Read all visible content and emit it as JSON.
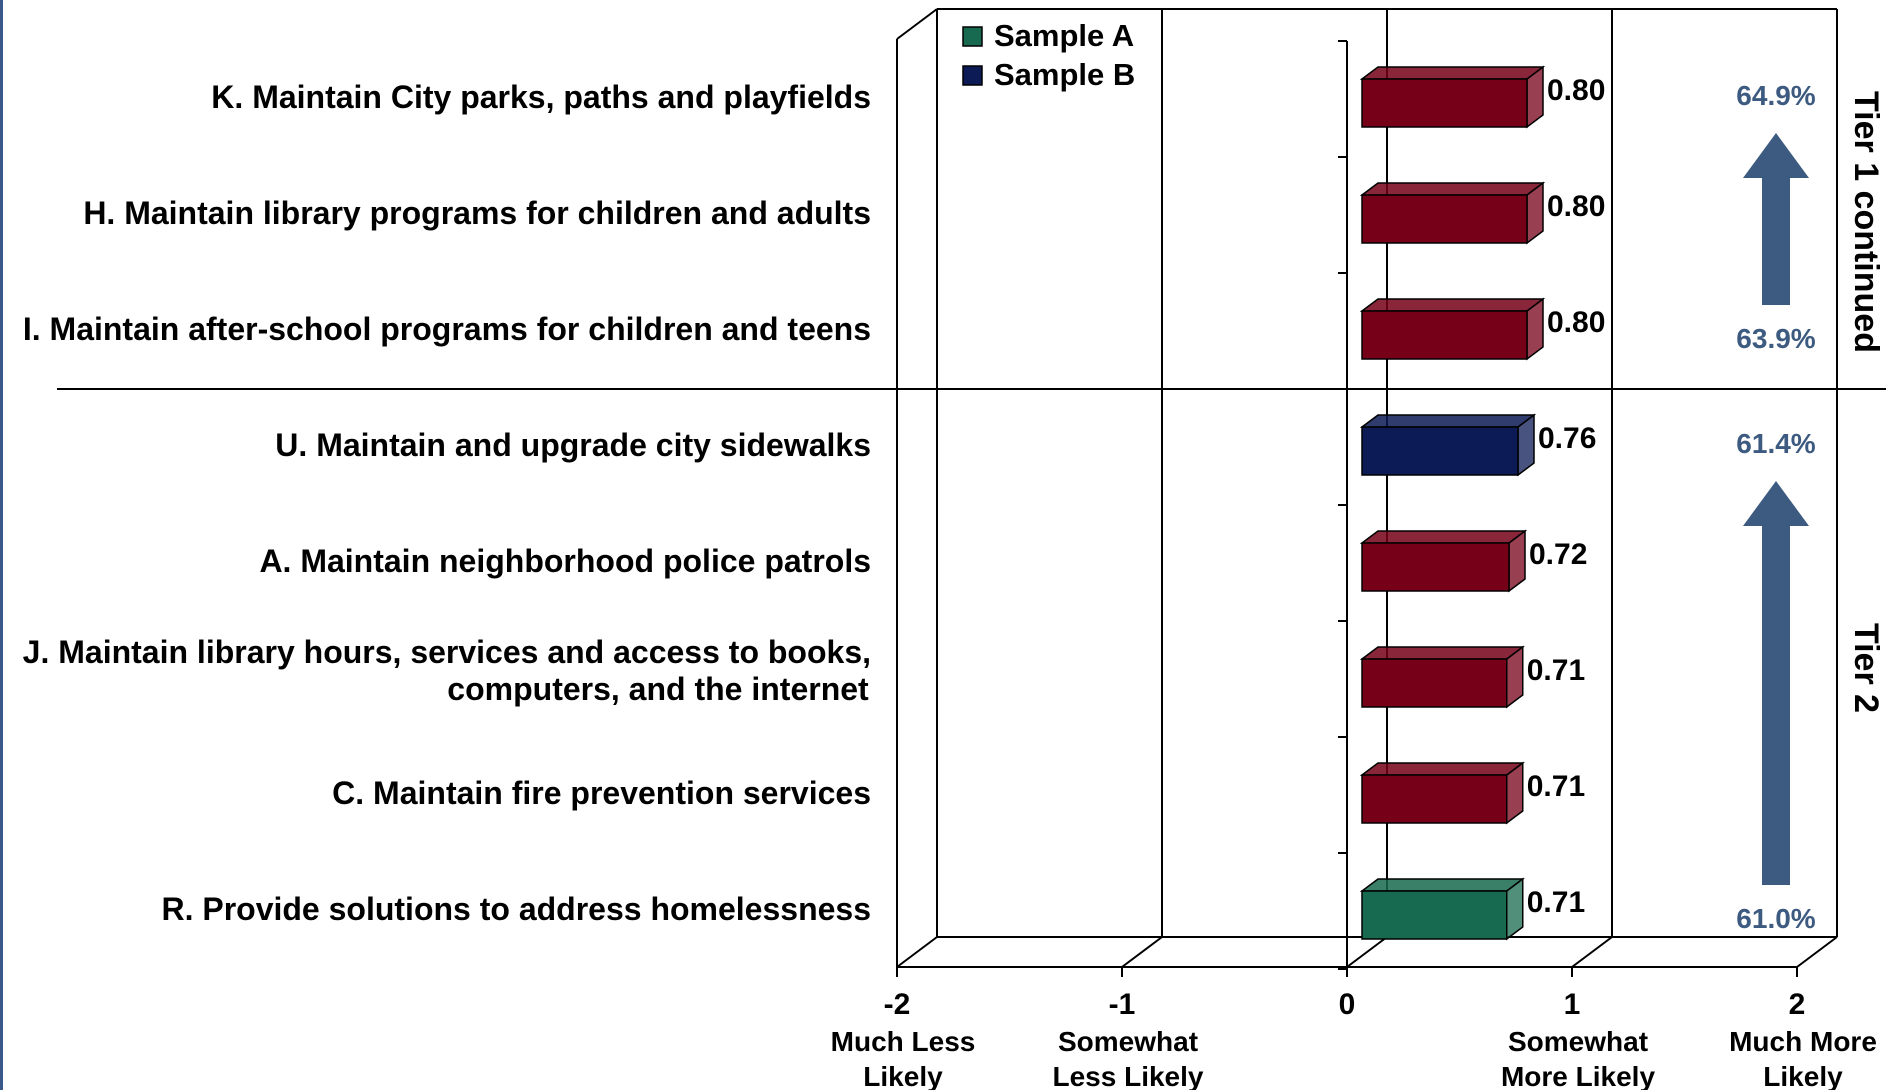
{
  "chart_data": {
    "type": "bar",
    "orientation": "horizontal",
    "categories": [
      "K. Maintain City parks, paths and playfields",
      "H. Maintain library programs for children and adults",
      "I. Maintain after-school programs for children and teens",
      "U. Maintain and upgrade city sidewalks",
      "A. Maintain neighborhood police patrols",
      "J. Maintain library hours, services and access to books, computers, and the internet",
      "C. Maintain fire prevention services",
      "R. Provide solutions to address homelessness"
    ],
    "category_lines": [
      [
        "K. Maintain City parks, paths and playfields"
      ],
      [
        "H. Maintain library programs for children and adults"
      ],
      [
        "I. Maintain after-school programs for children and teens"
      ],
      [
        "U. Maintain and upgrade city sidewalks"
      ],
      [
        "A. Maintain neighborhood police patrols"
      ],
      [
        "J. Maintain library hours, services and access to books,",
        "computers, and the internet"
      ],
      [
        "C. Maintain fire prevention services"
      ],
      [
        "R. Provide solutions to address homelessness"
      ]
    ],
    "values": [
      0.8,
      0.8,
      0.8,
      0.76,
      0.72,
      0.71,
      0.71,
      0.71
    ],
    "value_labels": [
      "0.80",
      "0.80",
      "0.80",
      "0.76",
      "0.72",
      "0.71",
      "0.71",
      "0.71"
    ],
    "bar_sample": [
      "both",
      "both",
      "both",
      "B",
      "both",
      "both",
      "both",
      "A"
    ],
    "colors": {
      "both": "#760018",
      "A": "#176a4f",
      "B": "#0c1a55",
      "accent": "#3d5a80"
    },
    "legend": [
      {
        "name": "Sample A",
        "color": "#176a4f"
      },
      {
        "name": "Sample B",
        "color": "#0c1a55"
      }
    ],
    "legend_position": "top-left",
    "xlim": [
      -2,
      2
    ],
    "xticks": [
      {
        "value": -2,
        "label": "-2",
        "desc": [
          "Much Less",
          "Likely"
        ]
      },
      {
        "value": -1,
        "label": "-1",
        "desc": [
          "Somewhat",
          "Less Likely"
        ]
      },
      {
        "value": 0,
        "label": "0",
        "desc": []
      },
      {
        "value": 1,
        "label": "1",
        "desc": [
          "Somewhat",
          "More Likely"
        ]
      },
      {
        "value": 2,
        "label": "2",
        "desc": [
          "Much More",
          "Likely"
        ]
      }
    ],
    "gridlines": true,
    "tiers": [
      {
        "label": "Tier 1 continued",
        "first": 0,
        "last": 2,
        "top_pct": "64.9%",
        "bottom_pct": "63.9%"
      },
      {
        "label": "Tier 2",
        "first": 3,
        "last": 7,
        "top_pct": "61.4%",
        "bottom_pct": "61.0%"
      }
    ]
  }
}
